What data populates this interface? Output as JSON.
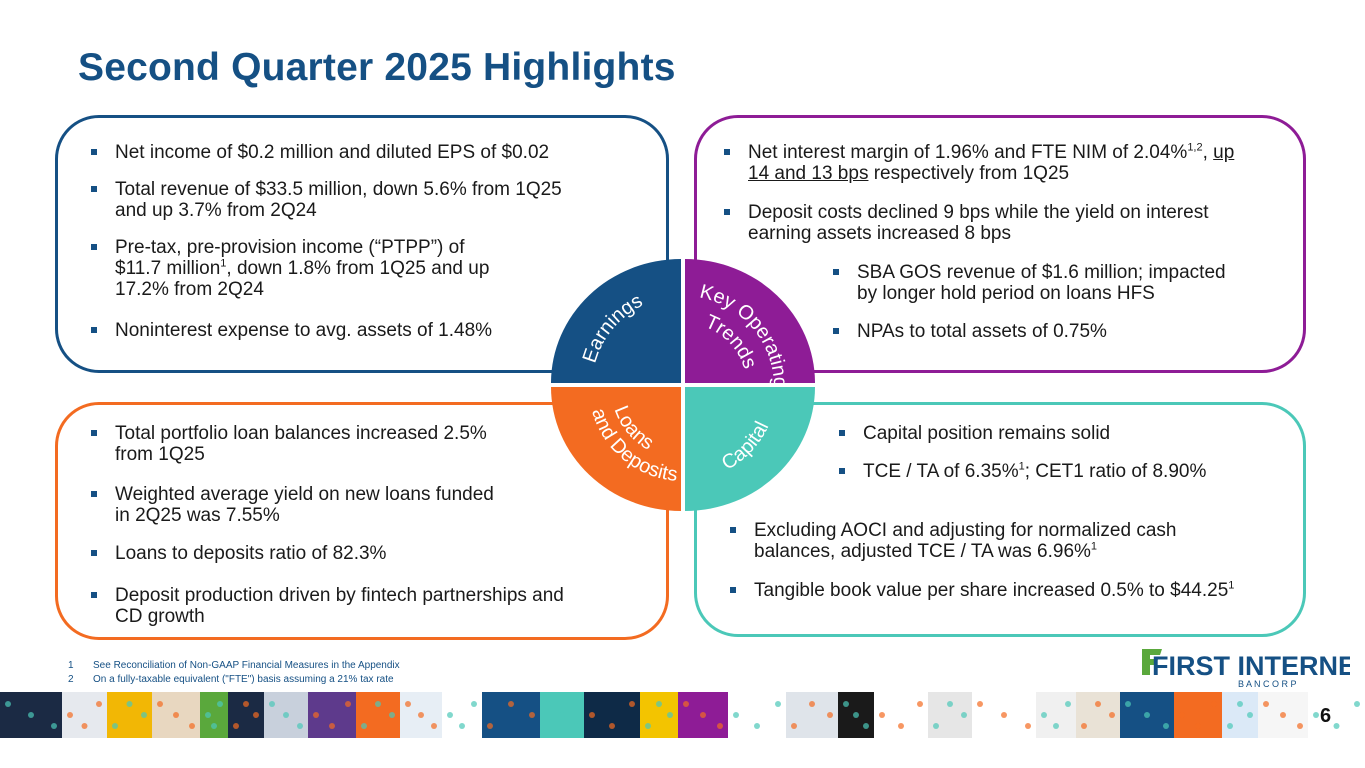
{
  "title": "Second Quarter 2025 Highlights",
  "colors": {
    "blue": "#155084",
    "purple": "#8e1c96",
    "orange": "#f36b21",
    "teal": "#4bc8b8"
  },
  "earnings": {
    "b1": "Net income of $0.2 million and diluted EPS of $0.02",
    "b2a": "Total revenue of $33.5 million, down 5.6% from 1Q25",
    "b2b": "and up 3.7% from 2Q24",
    "b3a": "Pre-tax, pre-provision income (“PTPP”) of",
    "b3b_pre": "$11.7 million",
    "b3b_sup": "1",
    "b3b_post": ", down 1.8% from 1Q25 and up",
    "b3c": "17.2% from 2Q24",
    "b4": "Noninterest expense to avg. assets of 1.48%"
  },
  "key_trends": {
    "b1a_pre": "Net interest margin of 1.96% and FTE NIM of 2.04%",
    "b1a_sup": "1,2",
    "b1a_sep": ", ",
    "b1a_u": "up",
    "b1b_u": "14 and 13 bps",
    "b1b_post": " respectively from 1Q25",
    "b2a": "Deposit costs declined 9 bps while the yield on interest",
    "b2b": "earning assets increased 8 bps",
    "b3a": "SBA GOS revenue of $1.6 million; impacted",
    "b3b": "by longer hold period on loans HFS",
    "b4": "NPAs to total assets of 0.75%"
  },
  "loans": {
    "b1a": "Total portfolio loan balances increased 2.5%",
    "b1b": "from 1Q25",
    "b2a": "Weighted average yield on new loans funded",
    "b2b": "in 2Q25 was 7.55%",
    "b3": "Loans to deposits ratio of 82.3%",
    "b4a": "Deposit production driven by fintech partnerships and",
    "b4b": "CD growth"
  },
  "capital": {
    "b1": "Capital position remains solid",
    "b2_pre": "TCE / TA of 6.35%",
    "b2_sup": "1",
    "b2_post": "; CET1 ratio of 8.90%",
    "b3a": "Excluding AOCI and adjusting for normalized cash",
    "b3b_pre": "balances, adjusted TCE / TA was 6.96%",
    "b3b_sup": "1",
    "b4_pre": "Tangible book value per share increased 0.5% to $44.25",
    "b4_sup": "1"
  },
  "quadrants": {
    "earnings": "Earnings",
    "key_line1": "Key Operating",
    "key_line2": "Trends",
    "loans_line1": "Loans",
    "loans_line2": "and Deposits",
    "capital": "Capital"
  },
  "footnotes": [
    {
      "num": "1",
      "text": "See Reconciliation of Non-GAAP Financial Measures in the Appendix"
    },
    {
      "num": "2",
      "text": "On a fully-taxable  equivalent  (\"FTE\") basis assuming  a 21% tax rate"
    }
  ],
  "logo": {
    "line1": "FIRST INTERNET",
    "line2": "B A N C O R P"
  },
  "page_number": "6"
}
